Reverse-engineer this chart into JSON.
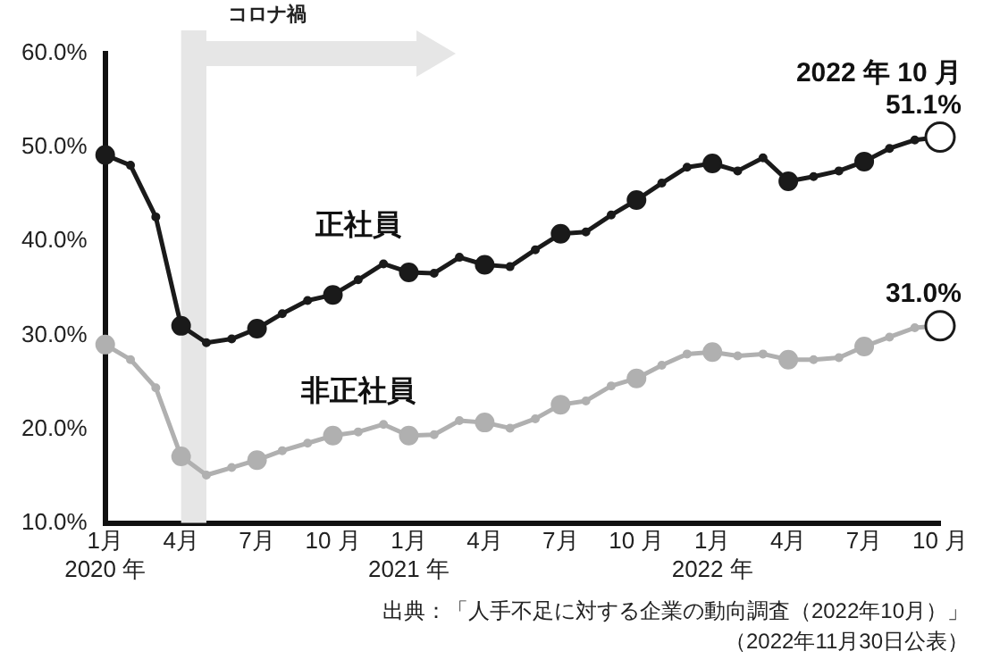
{
  "chart_data": {
    "type": "line",
    "x": [
      "2020-01",
      "2020-02",
      "2020-03",
      "2020-04",
      "2020-05",
      "2020-06",
      "2020-07",
      "2020-08",
      "2020-09",
      "2020-10",
      "2020-11",
      "2020-12",
      "2021-01",
      "2021-02",
      "2021-03",
      "2021-04",
      "2021-05",
      "2021-06",
      "2021-07",
      "2021-08",
      "2021-09",
      "2021-10",
      "2021-11",
      "2021-12",
      "2022-01",
      "2022-02",
      "2022-03",
      "2022-04",
      "2022-05",
      "2022-06",
      "2022-07",
      "2022-08",
      "2022-09",
      "2022-10"
    ],
    "series": [
      {
        "name": "正社員",
        "color": "#1a1a1a",
        "values": [
          49.2,
          48.1,
          42.6,
          31.0,
          29.2,
          29.6,
          30.7,
          32.3,
          33.7,
          34.3,
          35.9,
          37.6,
          36.7,
          36.6,
          38.3,
          37.5,
          37.3,
          39.1,
          40.8,
          41.0,
          42.8,
          44.4,
          46.2,
          47.9,
          48.3,
          47.5,
          48.9,
          46.4,
          46.9,
          47.5,
          48.5,
          49.9,
          50.8,
          51.1
        ],
        "value_labels": [
          null,
          null,
          null,
          null,
          null,
          null,
          null,
          null,
          null,
          null,
          null,
          null,
          null,
          null,
          null,
          null,
          null,
          null,
          null,
          null,
          null,
          null,
          null,
          null,
          null,
          null,
          null,
          null,
          null,
          null,
          null,
          null,
          null,
          "51.1%"
        ]
      },
      {
        "name": "非正社員",
        "color": "#b0b0b0",
        "values": [
          29.0,
          27.4,
          24.4,
          17.1,
          15.1,
          15.9,
          16.7,
          17.7,
          18.5,
          19.3,
          19.7,
          20.5,
          19.3,
          19.4,
          20.9,
          20.7,
          20.1,
          21.1,
          22.6,
          23.0,
          24.6,
          25.4,
          26.8,
          28.0,
          28.2,
          27.8,
          28.0,
          27.4,
          27.4,
          27.6,
          28.8,
          29.8,
          30.8,
          31.0
        ],
        "value_labels": [
          null,
          null,
          null,
          null,
          null,
          null,
          null,
          null,
          null,
          null,
          null,
          null,
          null,
          null,
          null,
          null,
          null,
          null,
          null,
          null,
          null,
          null,
          null,
          null,
          null,
          null,
          null,
          null,
          null,
          null,
          null,
          null,
          null,
          "31.0%"
        ]
      }
    ],
    "xlim": [
      "2020-01",
      "2022-10"
    ],
    "xticks": [
      {
        "value": "2020-01",
        "label": "1月\n2020 年"
      },
      {
        "value": "2020-04",
        "label": "4月"
      },
      {
        "value": "2020-07",
        "label": "7月"
      },
      {
        "value": "2020-10",
        "label": "10 月"
      },
      {
        "value": "2021-01",
        "label": "1月\n2021 年"
      },
      {
        "value": "2021-04",
        "label": "4月"
      },
      {
        "value": "2021-07",
        "label": "7月"
      },
      {
        "value": "2021-10",
        "label": "10 月"
      },
      {
        "value": "2022-01",
        "label": "1月\n2022 年"
      },
      {
        "value": "2022-04",
        "label": "4月"
      },
      {
        "value": "2022-07",
        "label": "7月"
      },
      {
        "value": "2022-10",
        "label": "10 月"
      }
    ],
    "ylim": [
      10,
      60
    ],
    "yticks": [
      {
        "value": 10,
        "label": "10.0%"
      },
      {
        "value": 20,
        "label": "20.0%"
      },
      {
        "value": 30,
        "label": "30.0%"
      },
      {
        "value": 40,
        "label": "40.0%"
      },
      {
        "value": 50,
        "label": "50.0%"
      },
      {
        "value": 60,
        "label": "60.0%"
      }
    ],
    "bands": [
      {
        "axis": "x",
        "from": "2020-04",
        "to": "2020-05",
        "label": "コロナ禍",
        "color": "#e6e6e6"
      }
    ],
    "annotations": [
      {
        "text": "2022 年 10 月",
        "x": "2022-10",
        "y": 51.1
      },
      "出典：「人手不足に対する企業の動向調査（2022年10月）」",
      "（2022年11月30日公表）"
    ],
    "grid": false,
    "legend": false,
    "marker": "circle",
    "line_style": "solid"
  }
}
